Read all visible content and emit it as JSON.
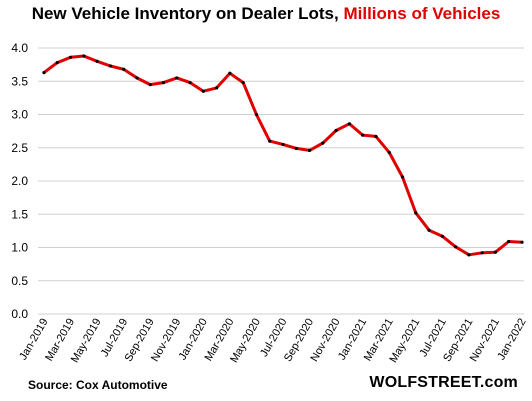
{
  "chart_data": {
    "type": "line",
    "title": "New Vehicle Inventory on Dealer Lots,",
    "title_highlight": "Millions of Vehicles",
    "source": "Source: Cox Automotive",
    "brand": "WOLFSTREET.com",
    "xlabel": "",
    "ylabel": "",
    "ylim": [
      0,
      4
    ],
    "yticks": [
      "0.0",
      "0.5",
      "1.0",
      "1.5",
      "2.0",
      "2.5",
      "3.0",
      "3.5",
      "4.0"
    ],
    "grid": true,
    "line_color": "#e00000",
    "marker_color": "#000000",
    "categories": [
      "Jan-2019",
      "Feb-2019",
      "Mar-2019",
      "Apr-2019",
      "May-2019",
      "Jun-2019",
      "Jul-2019",
      "Aug-2019",
      "Sep-2019",
      "Oct-2019",
      "Nov-2019",
      "Dec-2019",
      "Jan-2020",
      "Feb-2020",
      "Mar-2020",
      "Apr-2020",
      "May-2020",
      "Jun-2020",
      "Jul-2020",
      "Aug-2020",
      "Sep-2020",
      "Oct-2020",
      "Nov-2020",
      "Dec-2020",
      "Jan-2021",
      "Feb-2021",
      "Mar-2021",
      "Apr-2021",
      "May-2021",
      "Jun-2021",
      "Jul-2021",
      "Aug-2021",
      "Sep-2021",
      "Oct-2021",
      "Nov-2021",
      "Dec-2021",
      "Jan-2022"
    ],
    "xtick_labels": [
      "Jan-2019",
      "Mar-2019",
      "May-2019",
      "Jul-2019",
      "Sep-2019",
      "Nov-2019",
      "Jan-2020",
      "Mar-2020",
      "May-2020",
      "Jul-2020",
      "Sep-2020",
      "Nov-2020",
      "Jan-2021",
      "Mar-2021",
      "May-2021",
      "Jul-2021",
      "Sep-2021",
      "Nov-2021",
      "Jan-2022"
    ],
    "values": [
      3.63,
      3.78,
      3.86,
      3.88,
      3.8,
      3.73,
      3.68,
      3.55,
      3.45,
      3.48,
      3.55,
      3.48,
      3.35,
      3.4,
      3.62,
      3.48,
      3.0,
      2.6,
      2.55,
      2.49,
      2.46,
      2.57,
      2.76,
      2.86,
      2.69,
      2.67,
      2.43,
      2.06,
      1.52,
      1.26,
      1.17,
      1.01,
      0.89,
      0.92,
      0.93,
      1.09,
      1.08
    ]
  }
}
